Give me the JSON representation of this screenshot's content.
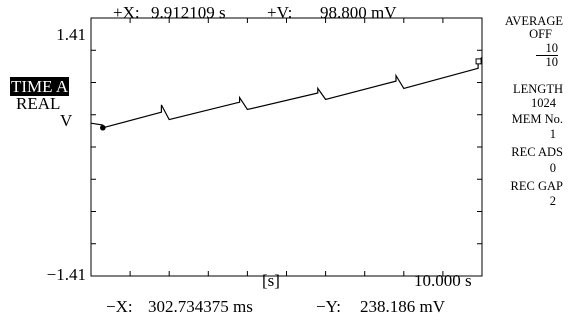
{
  "readout": {
    "plus_x_label": "+X:",
    "plus_x_value": "9.912109  s",
    "plus_v_label": "+V:",
    "plus_v_value": "98.800 mV",
    "minus_x_label": "−X:",
    "minus_x_value": "302.734375 ms",
    "minus_y_label": "−Y:",
    "minus_y_value": "238.186 mV"
  },
  "left_panel": {
    "mode_selected": "TIME A",
    "mode_type": "REAL",
    "unit": "V"
  },
  "right_panel": {
    "average_label": "AVERAGE",
    "average_value": "OFF",
    "average_num": "10",
    "average_den": "10",
    "length_label": "LENGTH",
    "length_value": "1024",
    "mem_label": "MEM No.",
    "mem_value": "1",
    "rec_ads_label": "REC ADS",
    "rec_ads_value": "0",
    "rec_gap_label": "REC GAP",
    "rec_gap_value": "2"
  },
  "chart_data": {
    "type": "line",
    "y_top_label": "1.41",
    "y_bottom_label": "−1.41",
    "x_unit_label": "[s]",
    "x_end_label": "10.000 s",
    "xlim": [
      0,
      10.0
    ],
    "ylim": [
      -1.41,
      1.41
    ],
    "grid": "ticks only",
    "series": [
      {
        "x": [
          0.0,
          0.3,
          0.3,
          1.8,
          1.8,
          2.0,
          3.8,
          3.8,
          4.0,
          5.8,
          5.8,
          6.0,
          7.8,
          7.8,
          8.0,
          9.9,
          9.9,
          10.0
        ],
        "y": [
          0.26,
          0.24,
          0.21,
          0.38,
          0.46,
          0.3,
          0.49,
          0.54,
          0.41,
          0.59,
          0.64,
          0.52,
          0.72,
          0.78,
          0.64,
          0.86,
          0.93,
          0.98
        ]
      }
    ],
    "cursors": [
      {
        "name": "−",
        "x": 0.302734375,
        "y": 0.238186,
        "marker": "filled-circle"
      },
      {
        "name": "+",
        "x": 9.912109,
        "y": 0.0988,
        "marker": "open-square"
      }
    ]
  }
}
